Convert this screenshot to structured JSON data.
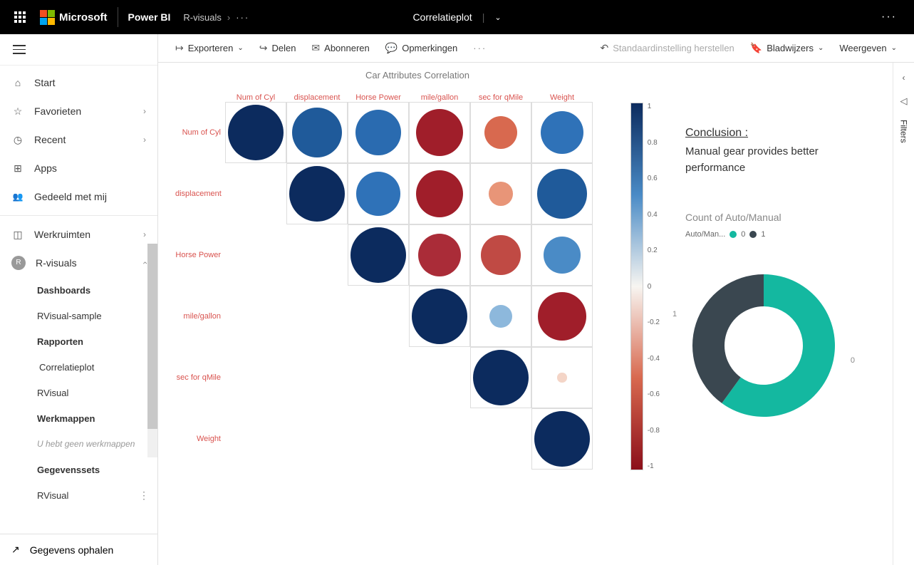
{
  "header": {
    "microsoft": "Microsoft",
    "product": "Power BI",
    "breadcrumb": "R-visuals",
    "page_title": "Correlatieplot"
  },
  "nav": {
    "start": "Start",
    "favorites": "Favorieten",
    "recent": "Recent",
    "apps": "Apps",
    "shared": "Gedeeld met mij",
    "workspaces": "Werkruimten",
    "current_ws": "R-visuals",
    "dashboards": "Dashboards",
    "rvisual_sample": "RVisual-sample",
    "reports": "Rapporten",
    "correlatieplot": "Correlatieplot",
    "rvisual": "RVisual",
    "workbooks": "Werkmappen",
    "no_workbooks": "U hebt geen werkmappen",
    "datasets": "Gegevenssets",
    "rvisual2": "RVisual",
    "get_data": "Gegevens ophalen"
  },
  "toolbar": {
    "export": "Exporteren",
    "share": "Delen",
    "subscribe": "Abonneren",
    "comments": "Opmerkingen",
    "reset": "Standaardinstelling herstellen",
    "bookmarks": "Bladwijzers",
    "view": "Weergeven"
  },
  "filters_label": "Filters",
  "corr_plot": {
    "title": "Car Attributes Correlation",
    "vars": [
      "Num of Cyl",
      "displacement",
      "Horse Power",
      "mile/gallon",
      "sec for qMile",
      "Weight"
    ],
    "cell_size": 86,
    "label_color": "#d9534f",
    "border_color": "#dddddd",
    "matrix": [
      [
        {
          "r": 1.0,
          "c": "#0c2b5e"
        },
        {
          "r": 0.9,
          "c": "#1f5a9a"
        },
        {
          "r": 0.83,
          "c": "#2a6bb0"
        },
        {
          "r": -0.85,
          "c": "#a01e2a"
        },
        {
          "r": -0.59,
          "c": "#d8694f"
        },
        {
          "r": 0.78,
          "c": "#2f72b8"
        }
      ],
      [
        null,
        {
          "r": 1.0,
          "c": "#0c2b5e"
        },
        {
          "r": 0.79,
          "c": "#2f72b8"
        },
        {
          "r": -0.85,
          "c": "#a01e2a"
        },
        {
          "r": -0.43,
          "c": "#e89578"
        },
        {
          "r": 0.89,
          "c": "#1f5a9a"
        }
      ],
      [
        null,
        null,
        {
          "r": 1.0,
          "c": "#0c2b5e"
        },
        {
          "r": -0.78,
          "c": "#aa2c38"
        },
        {
          "r": -0.71,
          "c": "#c04a44"
        },
        {
          "r": 0.66,
          "c": "#4a8bc6"
        }
      ],
      [
        null,
        null,
        null,
        {
          "r": 1.0,
          "c": "#0c2b5e"
        },
        {
          "r": 0.42,
          "c": "#8db8dc"
        },
        {
          "r": -0.87,
          "c": "#a01e2a"
        }
      ],
      [
        null,
        null,
        null,
        null,
        {
          "r": 1.0,
          "c": "#0c2b5e"
        },
        {
          "r": -0.17,
          "c": "#f4d5c7"
        }
      ],
      [
        null,
        null,
        null,
        null,
        null,
        {
          "r": 1.0,
          "c": "#0c2b5e"
        }
      ]
    ],
    "colorbar": {
      "ticks": [
        "1",
        "0.8",
        "0.6",
        "0.4",
        "0.2",
        "0",
        "-0.2",
        "-0.4",
        "-0.6",
        "-0.8",
        "-1"
      ],
      "gradient_stops": [
        {
          "p": 0,
          "c": "#0c2b5e"
        },
        {
          "p": 25,
          "c": "#4a8bc6"
        },
        {
          "p": 50,
          "c": "#f7f5f1"
        },
        {
          "p": 75,
          "c": "#d8694f"
        },
        {
          "p": 100,
          "c": "#8b0f1a"
        }
      ]
    }
  },
  "conclusion": {
    "title": "Conclusion :",
    "text": "Manual gear provides better performance"
  },
  "donut": {
    "title": "Count of Auto/Manual",
    "legend_field": "Auto/Man...",
    "series": [
      {
        "label": "0",
        "color": "#14b8a0",
        "pct": 60
      },
      {
        "label": "1",
        "color": "#3a4750",
        "pct": 40
      }
    ],
    "label_0": "0",
    "label_1": "1"
  }
}
